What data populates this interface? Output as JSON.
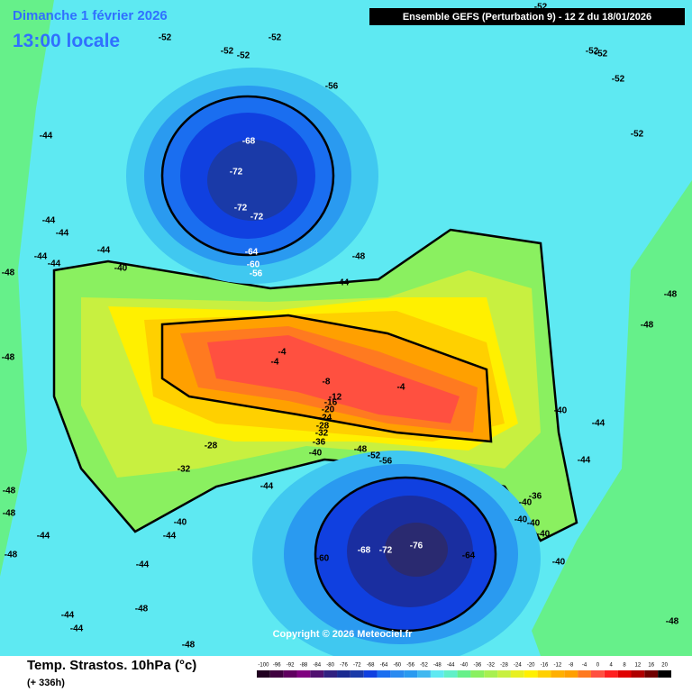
{
  "header": {
    "date": "Dimanche 1 février 2026",
    "time": "13:00 locale",
    "model": "Ensemble GEFS  (Perturbation 9)  -  12 Z du 18/01/2026"
  },
  "map": {
    "copyright": "Copyright © 2026 Meteociel.fr",
    "contour_labels": [
      "-52",
      "-52",
      "-52",
      "-52",
      "-56",
      "-68",
      "-72",
      "-72",
      "-72",
      "-64",
      "-60",
      "-56",
      "-44",
      "-44",
      "-44",
      "-44",
      "-44",
      "-44",
      "-40",
      "-48",
      "-44",
      "-48",
      "-48",
      "-4",
      "-4",
      "-8",
      "-4",
      "-12",
      "-16",
      "-20",
      "-24",
      "-28",
      "-32",
      "-36",
      "-40",
      "-48",
      "-52",
      "-56",
      "-28",
      "-32",
      "-44",
      "-40",
      "-44",
      "-44",
      "-48",
      "-44",
      "-44",
      "-48",
      "-48",
      "-48",
      "-44",
      "-48",
      "-60",
      "-68",
      "-72",
      "-76",
      "-64",
      "-36",
      "-40",
      "-40",
      "-40",
      "-40",
      "-40",
      "-44",
      "-44",
      "-40",
      "-48",
      "-48",
      "-48",
      "-52",
      "-52",
      "-52",
      "-52",
      "-52"
    ]
  },
  "footer": {
    "parameter": "Temp. Strastos. 10hPa (°c)",
    "lead": "(+ 336h)",
    "scale": [
      "-100",
      "-96",
      "-92",
      "-88",
      "-84",
      "-80",
      "-76",
      "-72",
      "-68",
      "-64",
      "-60",
      "-56",
      "-52",
      "-48",
      "-44",
      "-40",
      "-36",
      "-32",
      "-28",
      "-24",
      "-20",
      "-16",
      "-12",
      "-8",
      "-4",
      "0",
      "4",
      "8",
      "12",
      "16",
      "20"
    ]
  }
}
